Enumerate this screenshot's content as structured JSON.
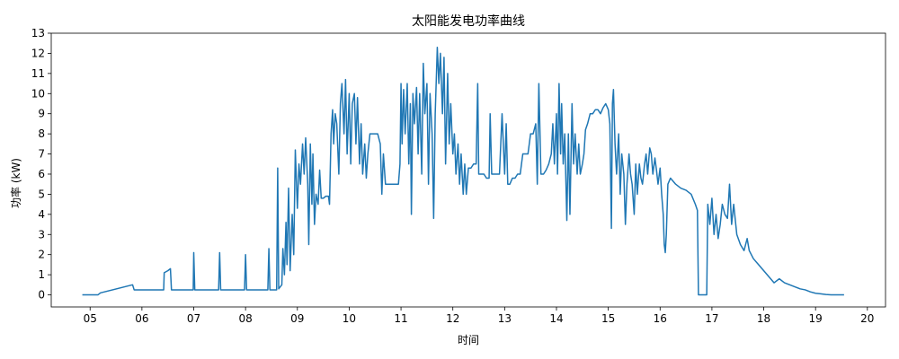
{
  "chart_data": {
    "type": "line",
    "title": "太阳能发电功率曲线",
    "xlabel": "时间",
    "ylabel": "功率 (kW)",
    "xlim": [
      4.25,
      20.35
    ],
    "ylim": [
      -0.6,
      13.0
    ],
    "x_ticks": [
      {
        "value": 5,
        "label": "05"
      },
      {
        "value": 6,
        "label": "06"
      },
      {
        "value": 7,
        "label": "07"
      },
      {
        "value": 8,
        "label": "08"
      },
      {
        "value": 9,
        "label": "09"
      },
      {
        "value": 10,
        "label": "10"
      },
      {
        "value": 11,
        "label": "11"
      },
      {
        "value": 12,
        "label": "12"
      },
      {
        "value": 13,
        "label": "13"
      },
      {
        "value": 14,
        "label": "14"
      },
      {
        "value": 15,
        "label": "15"
      },
      {
        "value": 16,
        "label": "16"
      },
      {
        "value": 17,
        "label": "17"
      },
      {
        "value": 18,
        "label": "18"
      },
      {
        "value": 19,
        "label": "19"
      },
      {
        "value": 20,
        "label": "20"
      }
    ],
    "y_ticks": [
      {
        "value": 0,
        "label": "0"
      },
      {
        "value": 1,
        "label": "1"
      },
      {
        "value": 2,
        "label": "2"
      },
      {
        "value": 3,
        "label": "3"
      },
      {
        "value": 4,
        "label": "4"
      },
      {
        "value": 5,
        "label": "5"
      },
      {
        "value": 6,
        "label": "6"
      },
      {
        "value": 7,
        "label": "7"
      },
      {
        "value": 8,
        "label": "8"
      },
      {
        "value": 9,
        "label": "9"
      },
      {
        "value": 10,
        "label": "10"
      },
      {
        "value": 11,
        "label": "11"
      },
      {
        "value": 12,
        "label": "12"
      },
      {
        "value": 13,
        "label": "13"
      }
    ],
    "grid": false,
    "legend": "none",
    "line_color": "#1f77b4",
    "series": [
      {
        "values_xy": [
          [
            4.85,
            0
          ],
          [
            5.15,
            0
          ],
          [
            5.2,
            0.1
          ],
          [
            5.82,
            0.5
          ],
          [
            5.85,
            0.25
          ],
          [
            6.42,
            0.25
          ],
          [
            6.43,
            1.1
          ],
          [
            6.5,
            1.2
          ],
          [
            6.55,
            1.3
          ],
          [
            6.57,
            0.25
          ],
          [
            6.99,
            0.25
          ],
          [
            7.0,
            2.1
          ],
          [
            7.02,
            0.25
          ],
          [
            7.48,
            0.25
          ],
          [
            7.5,
            2.1
          ],
          [
            7.52,
            0.25
          ],
          [
            7.98,
            0.25
          ],
          [
            8.0,
            2.0
          ],
          [
            8.02,
            0.25
          ],
          [
            8.43,
            0.25
          ],
          [
            8.45,
            2.3
          ],
          [
            8.47,
            0.25
          ],
          [
            8.6,
            0.25
          ],
          [
            8.62,
            6.3
          ],
          [
            8.64,
            0.3
          ],
          [
            8.7,
            0.5
          ],
          [
            8.72,
            2.3
          ],
          [
            8.75,
            1.0
          ],
          [
            8.78,
            3.6
          ],
          [
            8.8,
            1.5
          ],
          [
            8.83,
            5.3
          ],
          [
            8.86,
            1.2
          ],
          [
            8.9,
            4.0
          ],
          [
            8.93,
            2.0
          ],
          [
            8.96,
            7.2
          ],
          [
            9.0,
            4.3
          ],
          [
            9.03,
            6.5
          ],
          [
            9.06,
            5.5
          ],
          [
            9.1,
            7.5
          ],
          [
            9.13,
            6.0
          ],
          [
            9.16,
            7.8
          ],
          [
            9.2,
            5.5
          ],
          [
            9.22,
            2.5
          ],
          [
            9.25,
            7.5
          ],
          [
            9.28,
            4.5
          ],
          [
            9.3,
            7.0
          ],
          [
            9.33,
            3.5
          ],
          [
            9.36,
            5.0
          ],
          [
            9.4,
            4.5
          ],
          [
            9.43,
            6.2
          ],
          [
            9.46,
            4.8
          ],
          [
            9.5,
            4.8
          ],
          [
            9.55,
            4.9
          ],
          [
            9.6,
            4.9
          ],
          [
            9.62,
            4.5
          ],
          [
            9.65,
            8.0
          ],
          [
            9.68,
            9.2
          ],
          [
            9.7,
            7.5
          ],
          [
            9.73,
            9.0
          ],
          [
            9.76,
            8.5
          ],
          [
            9.8,
            6.0
          ],
          [
            9.83,
            9.5
          ],
          [
            9.86,
            10.5
          ],
          [
            9.9,
            8.0
          ],
          [
            9.93,
            10.7
          ],
          [
            9.96,
            7.0
          ],
          [
            10.0,
            10.0
          ],
          [
            10.03,
            6.5
          ],
          [
            10.06,
            9.5
          ],
          [
            10.1,
            10.0
          ],
          [
            10.13,
            7.5
          ],
          [
            10.16,
            9.8
          ],
          [
            10.2,
            6.5
          ],
          [
            10.23,
            8.5
          ],
          [
            10.26,
            6.0
          ],
          [
            10.3,
            7.5
          ],
          [
            10.33,
            5.8
          ],
          [
            10.36,
            7.0
          ],
          [
            10.4,
            8.0
          ],
          [
            10.45,
            8.0
          ],
          [
            10.5,
            8.0
          ],
          [
            10.55,
            8.0
          ],
          [
            10.6,
            7.5
          ],
          [
            10.63,
            5.0
          ],
          [
            10.66,
            7.0
          ],
          [
            10.7,
            5.5
          ],
          [
            10.75,
            5.5
          ],
          [
            10.8,
            5.5
          ],
          [
            10.85,
            5.5
          ],
          [
            10.9,
            5.5
          ],
          [
            10.95,
            5.5
          ],
          [
            10.98,
            6.5
          ],
          [
            11.0,
            10.5
          ],
          [
            11.02,
            7.5
          ],
          [
            11.05,
            10.2
          ],
          [
            11.08,
            8.0
          ],
          [
            11.12,
            10.5
          ],
          [
            11.15,
            6.5
          ],
          [
            11.18,
            9.5
          ],
          [
            11.2,
            4.0
          ],
          [
            11.23,
            10.0
          ],
          [
            11.26,
            8.5
          ],
          [
            11.3,
            10.3
          ],
          [
            11.33,
            7.0
          ],
          [
            11.36,
            10.0
          ],
          [
            11.4,
            6.0
          ],
          [
            11.43,
            11.5
          ],
          [
            11.46,
            9.0
          ],
          [
            11.5,
            10.5
          ],
          [
            11.53,
            5.5
          ],
          [
            11.56,
            10.0
          ],
          [
            11.6,
            8.0
          ],
          [
            11.63,
            3.8
          ],
          [
            11.66,
            9.0
          ],
          [
            11.7,
            12.3
          ],
          [
            11.73,
            10.5
          ],
          [
            11.76,
            12.0
          ],
          [
            11.8,
            9.0
          ],
          [
            11.83,
            11.8
          ],
          [
            11.86,
            6.5
          ],
          [
            11.9,
            11.0
          ],
          [
            11.93,
            7.5
          ],
          [
            11.96,
            9.5
          ],
          [
            12.0,
            7.0
          ],
          [
            12.03,
            8.0
          ],
          [
            12.06,
            6.0
          ],
          [
            12.1,
            7.5
          ],
          [
            12.13,
            5.5
          ],
          [
            12.16,
            7.0
          ],
          [
            12.2,
            5.0
          ],
          [
            12.23,
            6.5
          ],
          [
            12.26,
            5.0
          ],
          [
            12.3,
            6.3
          ],
          [
            12.35,
            6.3
          ],
          [
            12.4,
            6.5
          ],
          [
            12.45,
            6.5
          ],
          [
            12.48,
            10.5
          ],
          [
            12.5,
            6.0
          ],
          [
            12.55,
            6.0
          ],
          [
            12.6,
            6.0
          ],
          [
            12.65,
            5.8
          ],
          [
            12.7,
            5.8
          ],
          [
            12.72,
            9.0
          ],
          [
            12.75,
            6.0
          ],
          [
            12.8,
            6.0
          ],
          [
            12.9,
            6.0
          ],
          [
            12.95,
            9.0
          ],
          [
            13.0,
            6.0
          ],
          [
            13.03,
            8.5
          ],
          [
            13.06,
            5.5
          ],
          [
            13.1,
            5.5
          ],
          [
            13.15,
            5.8
          ],
          [
            13.2,
            5.8
          ],
          [
            13.25,
            6.0
          ],
          [
            13.3,
            6.0
          ],
          [
            13.35,
            7.0
          ],
          [
            13.4,
            7.0
          ],
          [
            13.45,
            7.0
          ],
          [
            13.5,
            8.0
          ],
          [
            13.55,
            8.0
          ],
          [
            13.6,
            8.5
          ],
          [
            13.63,
            5.5
          ],
          [
            13.66,
            10.5
          ],
          [
            13.7,
            6.0
          ],
          [
            13.75,
            6.0
          ],
          [
            13.8,
            6.2
          ],
          [
            13.85,
            6.5
          ],
          [
            13.9,
            7.0
          ],
          [
            13.93,
            8.5
          ],
          [
            13.96,
            6.5
          ],
          [
            14.0,
            9.0
          ],
          [
            14.02,
            6.0
          ],
          [
            14.05,
            10.5
          ],
          [
            14.08,
            7.0
          ],
          [
            14.1,
            9.5
          ],
          [
            14.13,
            6.5
          ],
          [
            14.16,
            8.0
          ],
          [
            14.2,
            3.7
          ],
          [
            14.23,
            8.0
          ],
          [
            14.26,
            4.0
          ],
          [
            14.3,
            9.5
          ],
          [
            14.33,
            6.5
          ],
          [
            14.36,
            8.0
          ],
          [
            14.4,
            6.0
          ],
          [
            14.43,
            7.5
          ],
          [
            14.46,
            6.0
          ],
          [
            14.5,
            6.5
          ],
          [
            14.53,
            7.0
          ],
          [
            14.56,
            8.2
          ],
          [
            14.6,
            8.5
          ],
          [
            14.65,
            9.0
          ],
          [
            14.7,
            9.0
          ],
          [
            14.75,
            9.2
          ],
          [
            14.8,
            9.2
          ],
          [
            14.85,
            9.0
          ],
          [
            14.9,
            9.3
          ],
          [
            14.95,
            9.5
          ],
          [
            15.0,
            9.2
          ],
          [
            15.03,
            8.5
          ],
          [
            15.06,
            3.3
          ],
          [
            15.08,
            9.5
          ],
          [
            15.1,
            10.2
          ],
          [
            15.13,
            7.5
          ],
          [
            15.16,
            6.0
          ],
          [
            15.2,
            8.0
          ],
          [
            15.23,
            5.0
          ],
          [
            15.26,
            7.0
          ],
          [
            15.3,
            6.0
          ],
          [
            15.33,
            3.5
          ],
          [
            15.36,
            5.5
          ],
          [
            15.4,
            7.0
          ],
          [
            15.43,
            6.0
          ],
          [
            15.46,
            5.5
          ],
          [
            15.5,
            4.0
          ],
          [
            15.53,
            6.5
          ],
          [
            15.56,
            5.0
          ],
          [
            15.6,
            6.5
          ],
          [
            15.63,
            5.8
          ],
          [
            15.66,
            5.5
          ],
          [
            15.7,
            6.5
          ],
          [
            15.73,
            7.0
          ],
          [
            15.76,
            6.0
          ],
          [
            15.8,
            7.3
          ],
          [
            15.83,
            7.0
          ],
          [
            15.86,
            6.0
          ],
          [
            15.9,
            6.8
          ],
          [
            15.93,
            6.2
          ],
          [
            15.96,
            5.5
          ],
          [
            16.0,
            6.3
          ],
          [
            16.03,
            5.0
          ],
          [
            16.06,
            4.0
          ],
          [
            16.08,
            2.5
          ],
          [
            16.1,
            2.1
          ],
          [
            16.12,
            3.0
          ],
          [
            16.15,
            5.5
          ],
          [
            16.2,
            5.8
          ],
          [
            16.3,
            5.5
          ],
          [
            16.4,
            5.3
          ],
          [
            16.5,
            5.2
          ],
          [
            16.6,
            5.0
          ],
          [
            16.68,
            4.5
          ],
          [
            16.72,
            4.2
          ],
          [
            16.74,
            0
          ],
          [
            16.9,
            0
          ],
          [
            16.92,
            4.5
          ],
          [
            16.96,
            3.5
          ],
          [
            17.0,
            4.8
          ],
          [
            17.04,
            3.0
          ],
          [
            17.08,
            4.0
          ],
          [
            17.12,
            2.8
          ],
          [
            17.16,
            3.5
          ],
          [
            17.2,
            4.5
          ],
          [
            17.25,
            4.0
          ],
          [
            17.3,
            3.8
          ],
          [
            17.34,
            5.5
          ],
          [
            17.38,
            3.5
          ],
          [
            17.42,
            4.5
          ],
          [
            17.48,
            3.0
          ],
          [
            17.55,
            2.5
          ],
          [
            17.62,
            2.2
          ],
          [
            17.68,
            2.8
          ],
          [
            17.72,
            2.2
          ],
          [
            17.8,
            1.8
          ],
          [
            17.9,
            1.5
          ],
          [
            18.0,
            1.2
          ],
          [
            18.1,
            0.9
          ],
          [
            18.2,
            0.6
          ],
          [
            18.3,
            0.8
          ],
          [
            18.4,
            0.6
          ],
          [
            18.5,
            0.5
          ],
          [
            18.6,
            0.4
          ],
          [
            18.7,
            0.3
          ],
          [
            18.8,
            0.25
          ],
          [
            18.9,
            0.15
          ],
          [
            19.0,
            0.08
          ],
          [
            19.1,
            0.05
          ],
          [
            19.2,
            0.02
          ],
          [
            19.3,
            0.0
          ],
          [
            19.55,
            0.0
          ]
        ]
      }
    ]
  }
}
